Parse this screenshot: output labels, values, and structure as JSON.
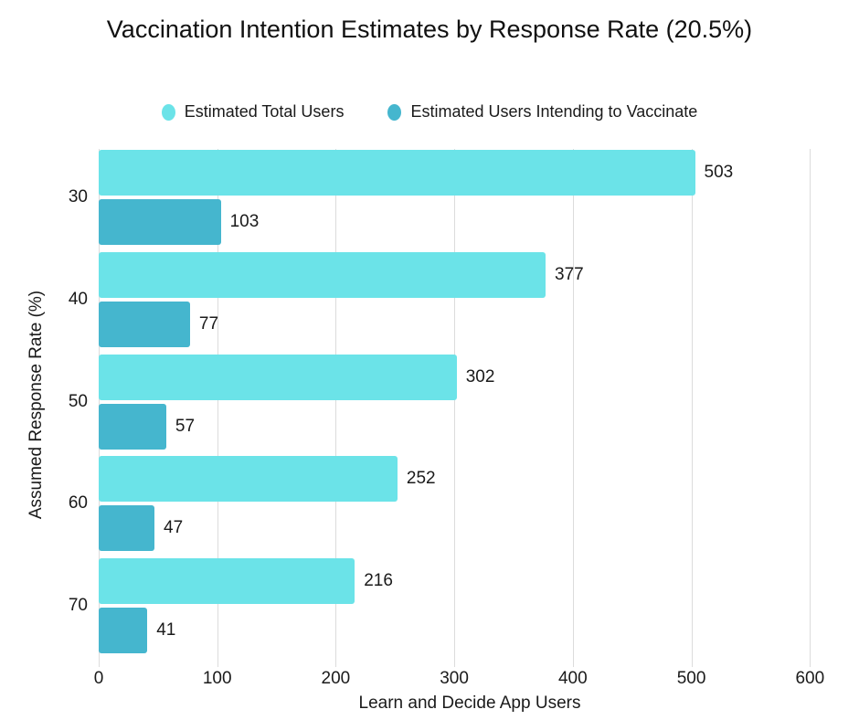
{
  "title": "Vaccination Intention Estimates by Response Rate (20.5%)",
  "legend": {
    "items": [
      {
        "label": "Estimated Total Users",
        "color": "#6BE3E8"
      },
      {
        "label": "Estimated Users Intending to Vaccinate",
        "color": "#45B6CE"
      }
    ]
  },
  "chart_data": {
    "type": "bar",
    "orientation": "horizontal",
    "title": "Vaccination Intention Estimates by Response Rate (20.5%)",
    "categories": [
      "30",
      "40",
      "50",
      "60",
      "70"
    ],
    "series": [
      {
        "name": "Estimated Total Users",
        "color": "#6BE3E8",
        "values": [
          503,
          377,
          302,
          252,
          216
        ]
      },
      {
        "name": "Estimated Users Intending to Vaccinate",
        "color": "#45B6CE",
        "values": [
          103,
          77,
          57,
          47,
          41
        ]
      }
    ],
    "xlabel": "Learn and Decide App Users",
    "ylabel": "Assumed Response Rate (%)",
    "xlim": [
      0,
      626
    ],
    "xticks": [
      0,
      100,
      200,
      300,
      400,
      500,
      600
    ],
    "grid": true,
    "gridline_color": "#dcdcdc",
    "legend_position": "top",
    "value_labels": true
  }
}
